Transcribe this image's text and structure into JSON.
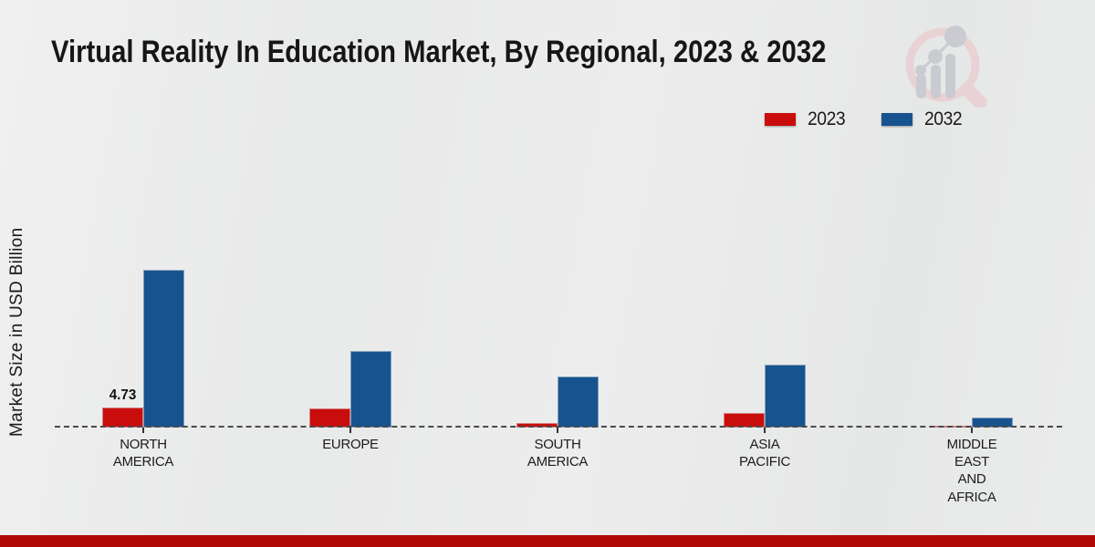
{
  "page": {
    "title": "Virtual Reality In Education Market, By Regional, 2023 & 2032",
    "ylabel": "Market Size in USD Billion",
    "background_color": "#eaebeb",
    "footer_bar_color": "#b00707",
    "text_color": "#1a1a1a"
  },
  "icons": {
    "logo": "bar-chart-magnifier-watermark-logo"
  },
  "legend": [
    {
      "label": "2023",
      "color": "#c90d0d"
    },
    {
      "label": "2032",
      "color": "#17538f"
    }
  ],
  "chart_data": {
    "type": "bar",
    "title": "Virtual Reality In Education Market, By Regional, 2023 & 2032",
    "xlabel": "",
    "ylabel": "Market Size in USD Billion",
    "categories": [
      "NORTH\nAMERICA",
      "EUROPE",
      "SOUTH\nAMERICA",
      "ASIA\nPACIFIC",
      "MIDDLE\nEAST\nAND\nAFRICA"
    ],
    "series": [
      {
        "name": "2023",
        "color": "#c90d0d",
        "values": [
          4.73,
          4.5,
          1.0,
          3.4,
          0.45
        ],
        "labels": [
          "4.73",
          "",
          "",
          "",
          ""
        ]
      },
      {
        "name": "2032",
        "color": "#17538f",
        "values": [
          36.5,
          17.7,
          11.8,
          14.6,
          2.3
        ],
        "labels": [
          "",
          "",
          "",
          "",
          ""
        ]
      }
    ],
    "ylim": [
      0,
      40
    ],
    "grid": false,
    "y_axis_ticks_visible": false,
    "legend_position": "top-right",
    "baseline_style": "dashed"
  }
}
